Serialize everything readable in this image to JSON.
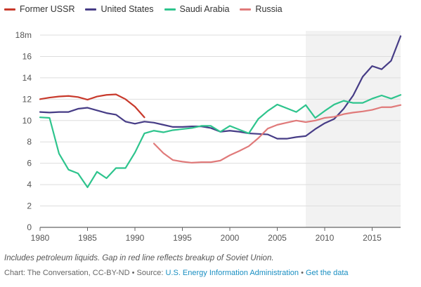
{
  "chart_data": {
    "type": "line",
    "title": "",
    "xlabel": "",
    "ylabel": "",
    "xlim": [
      1980,
      2018
    ],
    "ylim": [
      0,
      18
    ],
    "x_ticks": [
      1980,
      1985,
      1990,
      1995,
      2000,
      2005,
      2010,
      2015
    ],
    "y_ticks": [
      {
        "value": 0,
        "label": "0"
      },
      {
        "value": 2,
        "label": "2"
      },
      {
        "value": 4,
        "label": "4"
      },
      {
        "value": 6,
        "label": "6"
      },
      {
        "value": 8,
        "label": "8"
      },
      {
        "value": 10,
        "label": "10"
      },
      {
        "value": 12,
        "label": "12"
      },
      {
        "value": 14,
        "label": "14"
      },
      {
        "value": 16,
        "label": "16"
      },
      {
        "value": 18,
        "label": "18m"
      }
    ],
    "grid": "horizontal",
    "legend_position": "top-left",
    "highlight_range": [
      2008,
      2018
    ],
    "series": [
      {
        "name": "Former USSR",
        "color": "#c8392b",
        "x": [
          1980,
          1981,
          1982,
          1983,
          1984,
          1985,
          1986,
          1987,
          1988,
          1989,
          1990,
          1991
        ],
        "y": [
          12.0,
          12.15,
          12.25,
          12.3,
          12.2,
          11.95,
          12.25,
          12.4,
          12.45,
          12.0,
          11.3,
          10.3
        ]
      },
      {
        "name": "United States",
        "color": "#463c86",
        "x": [
          1980,
          1981,
          1982,
          1983,
          1984,
          1985,
          1986,
          1987,
          1988,
          1989,
          1990,
          1991,
          1992,
          1993,
          1994,
          1995,
          1996,
          1997,
          1998,
          1999,
          2000,
          2001,
          2002,
          2003,
          2004,
          2005,
          2006,
          2007,
          2008,
          2009,
          2010,
          2011,
          2012,
          2013,
          2014,
          2015,
          2016,
          2017,
          2018
        ],
        "y": [
          10.8,
          10.75,
          10.8,
          10.8,
          11.1,
          11.2,
          10.95,
          10.7,
          10.55,
          9.9,
          9.7,
          9.9,
          9.8,
          9.6,
          9.4,
          9.4,
          9.45,
          9.45,
          9.3,
          8.95,
          9.05,
          8.95,
          8.8,
          8.75,
          8.7,
          8.3,
          8.3,
          8.45,
          8.55,
          9.2,
          9.75,
          10.15,
          11.1,
          12.35,
          14.1,
          15.1,
          14.8,
          15.6,
          17.9
        ]
      },
      {
        "name": "Saudi Arabia",
        "color": "#2ec48d",
        "x": [
          1980,
          1981,
          1982,
          1983,
          1984,
          1985,
          1986,
          1987,
          1988,
          1989,
          1990,
          1991,
          1992,
          1993,
          1994,
          1995,
          1996,
          1997,
          1998,
          1999,
          2000,
          2001,
          2002,
          2003,
          2004,
          2005,
          2006,
          2007,
          2008,
          2009,
          2010,
          2011,
          2012,
          2013,
          2014,
          2015,
          2016,
          2017,
          2018
        ],
        "y": [
          10.3,
          10.25,
          6.9,
          5.4,
          5.05,
          3.75,
          5.2,
          4.6,
          5.55,
          5.55,
          7.0,
          8.8,
          9.05,
          8.9,
          9.1,
          9.2,
          9.3,
          9.5,
          9.5,
          8.95,
          9.5,
          9.15,
          8.8,
          10.15,
          10.9,
          11.5,
          11.15,
          10.8,
          11.45,
          10.25,
          10.9,
          11.5,
          11.85,
          11.65,
          11.65,
          12.05,
          12.35,
          12.05,
          12.4
        ]
      },
      {
        "name": "Russia",
        "color": "#e07a7a",
        "x": [
          1992,
          1993,
          1994,
          1995,
          1996,
          1997,
          1998,
          1999,
          2000,
          2001,
          2002,
          2003,
          2004,
          2005,
          2006,
          2007,
          2008,
          2009,
          2010,
          2011,
          2012,
          2013,
          2014,
          2015,
          2016,
          2017,
          2018
        ],
        "y": [
          7.85,
          6.95,
          6.3,
          6.15,
          6.05,
          6.1,
          6.1,
          6.25,
          6.75,
          7.15,
          7.6,
          8.35,
          9.25,
          9.6,
          9.8,
          10.0,
          9.85,
          10.0,
          10.25,
          10.35,
          10.6,
          10.75,
          10.85,
          11.0,
          11.25,
          11.25,
          11.45
        ]
      }
    ]
  },
  "footnote": "Includes petroleum liquids. Gap in red line reflects breakup of Soviet Union.",
  "credit": {
    "prefix": "Chart: The Conversation, CC-BY-ND",
    "source_label": "Source:",
    "source_link": "U.S. Energy Information Administration",
    "data_link": "Get the data",
    "separator": "•"
  }
}
